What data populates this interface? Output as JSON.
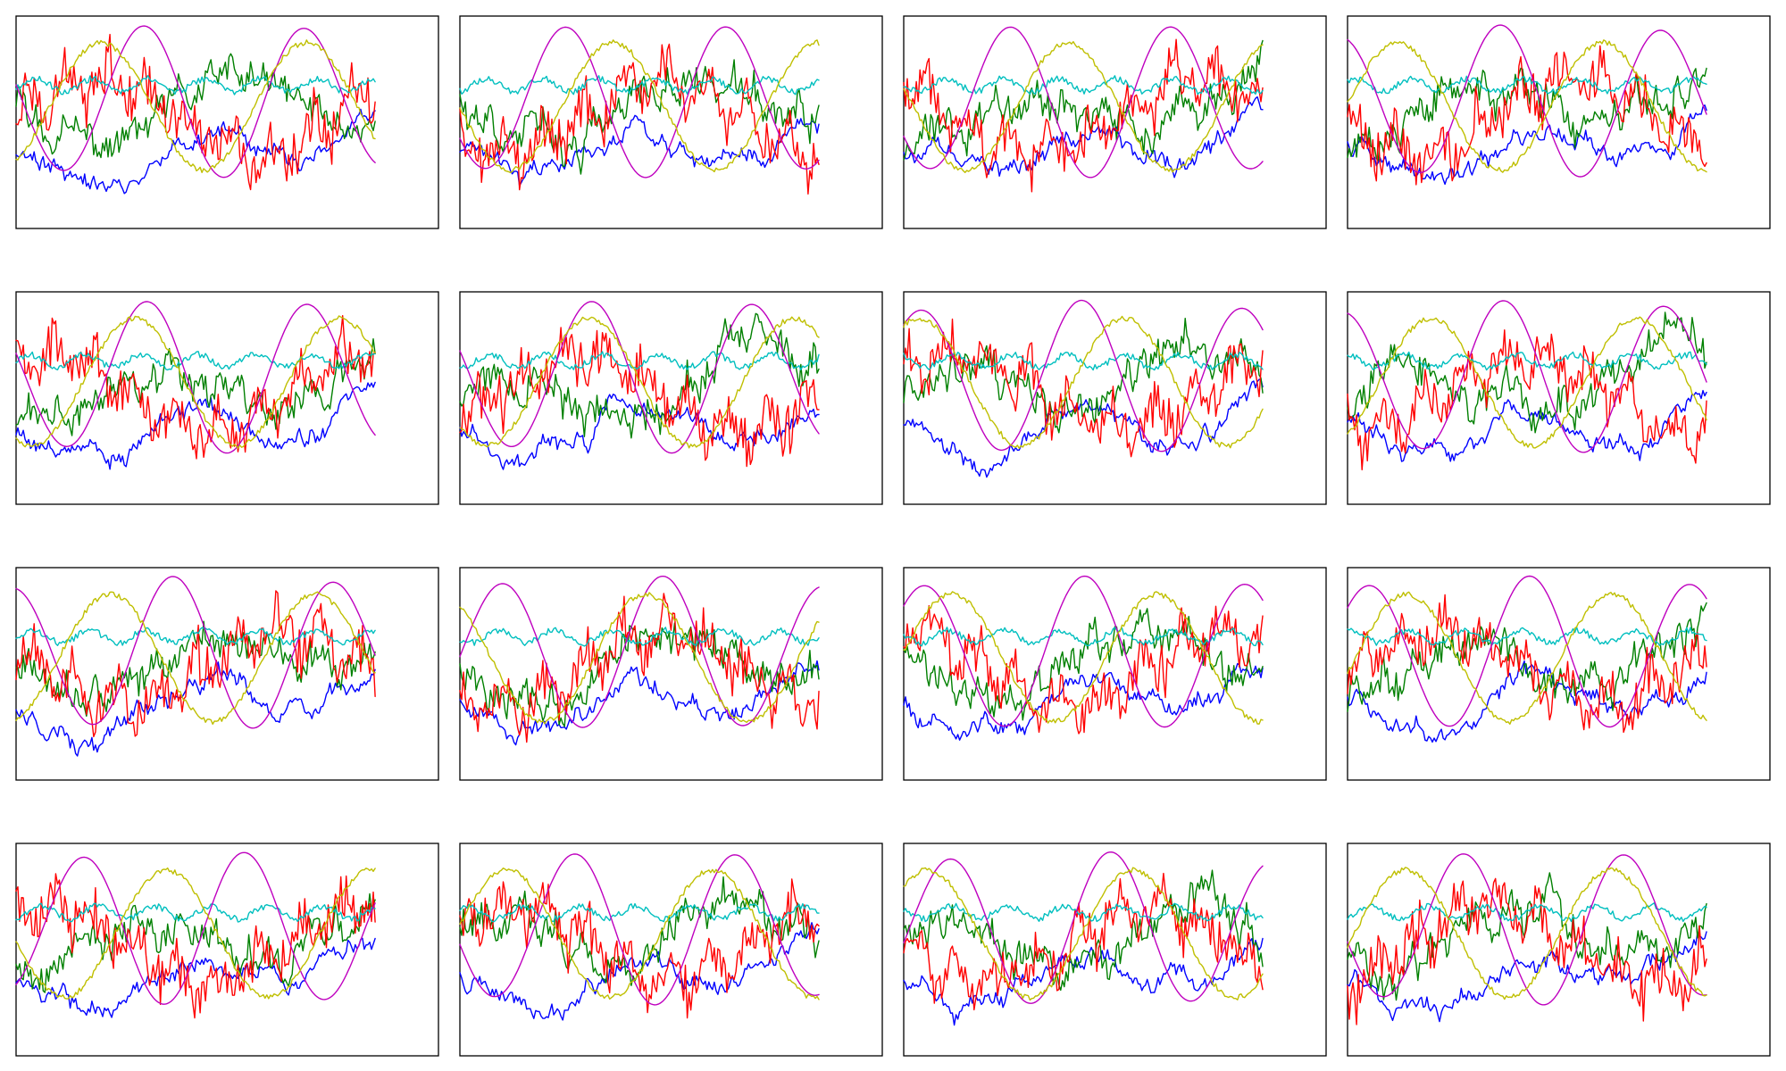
{
  "chart_data": {
    "type": "line",
    "rows": 4,
    "cols": 4,
    "axes_visible": false,
    "ticks_visible": false,
    "grid": false,
    "legend": "none",
    "y_range": [
      -1,
      1
    ],
    "samples_per_series": 200,
    "x_extent_fraction": 0.85,
    "series_colors": [
      "#0000ff",
      "#008000",
      "#ff0000",
      "#00bfbf",
      "#bf00bf",
      "#bfbf00"
    ],
    "panel_count": 16,
    "panels_seed": [
      11,
      23,
      37,
      41,
      53,
      67,
      71,
      83,
      97,
      101,
      113,
      127,
      131,
      149,
      157,
      163
    ]
  }
}
